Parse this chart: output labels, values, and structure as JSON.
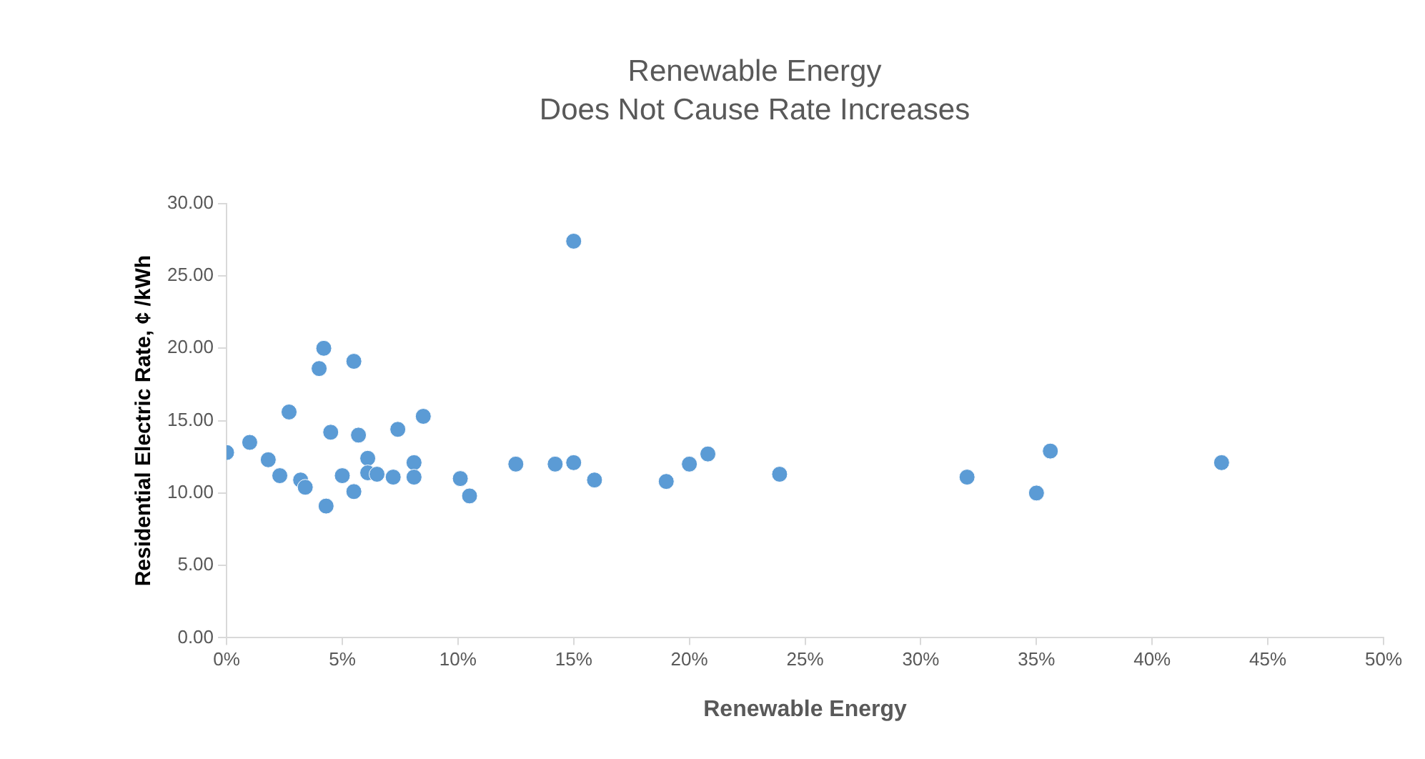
{
  "chart_data": {
    "type": "scatter",
    "title": "Renewable Energy",
    "subtitle": "Does Not Cause Rate Increases",
    "xlabel": "Renewable Energy",
    "ylabel": "Residential Electric Rate, ¢ /kWh",
    "x": [
      0,
      1.0,
      1.8,
      2.3,
      2.7,
      3.2,
      3.4,
      4.0,
      4.2,
      4.3,
      4.5,
      5.0,
      5.5,
      5.5,
      5.7,
      6.1,
      6.1,
      6.5,
      7.2,
      7.4,
      8.1,
      8.1,
      8.5,
      10.1,
      10.5,
      12.5,
      14.2,
      15.0,
      15.0,
      15.9,
      19.0,
      20.0,
      20.8,
      23.9,
      32.0,
      35.0,
      35.6,
      43.0
    ],
    "series": [
      {
        "color": "#5b9bd5",
        "values": [
          12.8,
          13.5,
          12.3,
          11.2,
          15.6,
          10.9,
          10.4,
          18.6,
          20.0,
          9.1,
          14.2,
          11.2,
          10.1,
          19.1,
          14.0,
          12.4,
          11.4,
          11.3,
          11.1,
          14.4,
          12.1,
          11.1,
          15.3,
          11.0,
          9.8,
          12.0,
          12.0,
          27.4,
          12.1,
          10.9,
          10.8,
          12.0,
          12.7,
          11.3,
          11.1,
          10.0,
          12.9,
          12.1
        ]
      }
    ],
    "xlim": [
      0,
      50
    ],
    "xticks": [
      {
        "value": 0,
        "label": "0%"
      },
      {
        "value": 5,
        "label": "5%"
      },
      {
        "value": 10,
        "label": "10%"
      },
      {
        "value": 15,
        "label": "15%"
      },
      {
        "value": 20,
        "label": "20%"
      },
      {
        "value": 25,
        "label": "25%"
      },
      {
        "value": 30,
        "label": "30%"
      },
      {
        "value": 35,
        "label": "35%"
      },
      {
        "value": 40,
        "label": "40%"
      },
      {
        "value": 45,
        "label": "45%"
      },
      {
        "value": 50,
        "label": "50%"
      }
    ],
    "ylim": [
      0,
      30
    ],
    "yticks": [
      {
        "value": 0,
        "label": "0.00"
      },
      {
        "value": 5,
        "label": "5.00"
      },
      {
        "value": 10,
        "label": "10.00"
      },
      {
        "value": 15,
        "label": "15.00"
      },
      {
        "value": 20,
        "label": "20.00"
      },
      {
        "value": 25,
        "label": "25.00"
      },
      {
        "value": 30,
        "label": "30.00"
      }
    ],
    "grid": false,
    "legend": false,
    "marker": "circle"
  }
}
